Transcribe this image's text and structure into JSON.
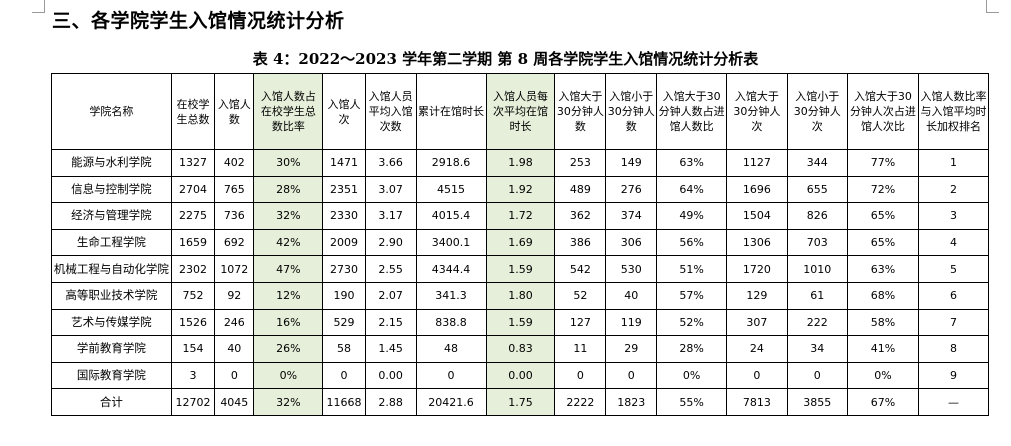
{
  "section_heading": "三、各学院学生入馆情况统计分析",
  "table_caption": "表 4：2022～2023 学年第二学期 第 8 周各学院学生入馆情况统计分析表",
  "columns": [
    "学院名称",
    "在校学生总数",
    "入馆人数",
    "入馆人数占在校学生总数比率",
    "入馆人次",
    "入馆人员平均入馆次数",
    "累计在馆时长",
    "入馆人员每次平均在馆时长",
    "入馆大于30分钟人数",
    "入馆小于30分钟人数",
    "入馆大于30分钟人数占进馆人数比",
    "入馆大于30分钟人次",
    "入馆小于30分钟人次",
    "入馆大于30分钟人次占进馆人次比",
    "入馆人数比率与入馆平均时长加权排名"
  ],
  "rows": [
    [
      "能源与水利学院",
      "1327",
      "402",
      "30%",
      "1471",
      "3.66",
      "2918.6",
      "1.98",
      "253",
      "149",
      "63%",
      "1127",
      "344",
      "77%",
      "1"
    ],
    [
      "信息与控制学院",
      "2704",
      "765",
      "28%",
      "2351",
      "3.07",
      "4515",
      "1.92",
      "489",
      "276",
      "64%",
      "1696",
      "655",
      "72%",
      "2"
    ],
    [
      "经济与管理学院",
      "2275",
      "736",
      "32%",
      "2330",
      "3.17",
      "4015.4",
      "1.72",
      "362",
      "374",
      "49%",
      "1504",
      "826",
      "65%",
      "3"
    ],
    [
      "生命工程学院",
      "1659",
      "692",
      "42%",
      "2009",
      "2.90",
      "3400.1",
      "1.69",
      "386",
      "306",
      "56%",
      "1306",
      "703",
      "65%",
      "4"
    ],
    [
      "机械工程与自动化学院",
      "2302",
      "1072",
      "47%",
      "2730",
      "2.55",
      "4344.4",
      "1.59",
      "542",
      "530",
      "51%",
      "1720",
      "1010",
      "63%",
      "5"
    ],
    [
      "高等职业技术学院",
      "752",
      "92",
      "12%",
      "190",
      "2.07",
      "341.3",
      "1.80",
      "52",
      "40",
      "57%",
      "129",
      "61",
      "68%",
      "6"
    ],
    [
      "艺术与传媒学院",
      "1526",
      "246",
      "16%",
      "529",
      "2.15",
      "838.8",
      "1.59",
      "127",
      "119",
      "52%",
      "307",
      "222",
      "58%",
      "7"
    ],
    [
      "学前教育学院",
      "154",
      "40",
      "26%",
      "58",
      "1.45",
      "48",
      "0.83",
      "11",
      "29",
      "28%",
      "24",
      "34",
      "41%",
      "8"
    ],
    [
      "国际教育学院",
      "3",
      "0",
      "0%",
      "0",
      "0.00",
      "0",
      "0.00",
      "0",
      "0",
      "0%",
      "0",
      "0",
      "0%",
      "9"
    ],
    [
      "合计",
      "12702",
      "4045",
      "32%",
      "11668",
      "2.88",
      "20421.6",
      "1.75",
      "2222",
      "1823",
      "55%",
      "7813",
      "3855",
      "67%",
      "—"
    ]
  ],
  "highlight_color": "#e6efd9"
}
